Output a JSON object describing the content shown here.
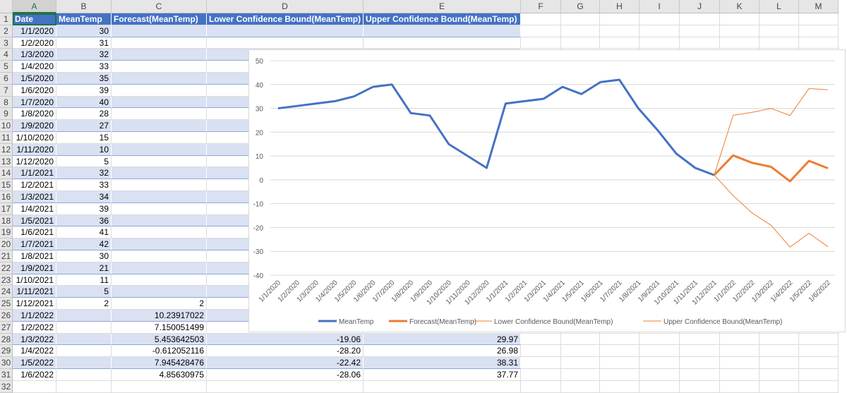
{
  "columns": [
    "A",
    "B",
    "C",
    "D",
    "E",
    "F",
    "G",
    "H",
    "I",
    "J",
    "K",
    "L",
    "M"
  ],
  "headers": [
    "Date",
    "MeanTemp",
    "Forecast(MeanTemp)",
    "Lower Confidence Bound(MeanTemp)",
    "Upper Confidence Bound(MeanTemp)"
  ],
  "rows": [
    [
      "1/1/2020",
      "30",
      "",
      "",
      ""
    ],
    [
      "1/2/2020",
      "31",
      "",
      "",
      ""
    ],
    [
      "1/3/2020",
      "32",
      "",
      "",
      ""
    ],
    [
      "1/4/2020",
      "33",
      "",
      "",
      ""
    ],
    [
      "1/5/2020",
      "35",
      "",
      "",
      ""
    ],
    [
      "1/6/2020",
      "39",
      "",
      "",
      ""
    ],
    [
      "1/7/2020",
      "40",
      "",
      "",
      ""
    ],
    [
      "1/8/2020",
      "28",
      "",
      "",
      ""
    ],
    [
      "1/9/2020",
      "27",
      "",
      "",
      ""
    ],
    [
      "1/10/2020",
      "15",
      "",
      "",
      ""
    ],
    [
      "1/11/2020",
      "10",
      "",
      "",
      ""
    ],
    [
      "1/12/2020",
      "5",
      "",
      "",
      ""
    ],
    [
      "1/1/2021",
      "32",
      "",
      "",
      ""
    ],
    [
      "1/2/2021",
      "33",
      "",
      "",
      ""
    ],
    [
      "1/3/2021",
      "34",
      "",
      "",
      ""
    ],
    [
      "1/4/2021",
      "39",
      "",
      "",
      ""
    ],
    [
      "1/5/2021",
      "36",
      "",
      "",
      ""
    ],
    [
      "1/6/2021",
      "41",
      "",
      "",
      ""
    ],
    [
      "1/7/2021",
      "42",
      "",
      "",
      ""
    ],
    [
      "1/8/2021",
      "30",
      "",
      "",
      ""
    ],
    [
      "1/9/2021",
      "21",
      "",
      "",
      ""
    ],
    [
      "1/10/2021",
      "11",
      "",
      "",
      ""
    ],
    [
      "1/11/2021",
      "5",
      "",
      "",
      ""
    ],
    [
      "1/12/2021",
      "2",
      "2",
      "",
      ""
    ],
    [
      "1/1/2022",
      "",
      "10.23917022",
      "",
      ""
    ],
    [
      "1/2/2022",
      "",
      "7.150051499",
      "",
      ""
    ],
    [
      "1/3/2022",
      "",
      "5.453642503",
      "-19.06",
      "29.97"
    ],
    [
      "1/4/2022",
      "",
      "-0.612052116",
      "-28.20",
      "26.98"
    ],
    [
      "1/5/2022",
      "",
      "7.945428476",
      "-22.42",
      "38.31"
    ],
    [
      "1/6/2022",
      "",
      "4.85630975",
      "-28.06",
      "37.77"
    ]
  ],
  "chart_data": {
    "type": "line",
    "categories": [
      "1/1/2020",
      "1/2/2020",
      "1/3/2020",
      "1/4/2020",
      "1/5/2020",
      "1/6/2020",
      "1/7/2020",
      "1/8/2020",
      "1/9/2020",
      "1/10/2020",
      "1/11/2020",
      "1/12/2020",
      "1/1/2021",
      "1/2/2021",
      "1/3/2021",
      "1/4/2021",
      "1/5/2021",
      "1/6/2021",
      "1/7/2021",
      "1/8/2021",
      "1/9/2021",
      "1/10/2021",
      "1/11/2021",
      "1/12/2021",
      "1/1/2022",
      "1/2/2022",
      "1/3/2022",
      "1/4/2022",
      "1/5/2022",
      "1/6/2022"
    ],
    "ylim": [
      -40,
      50
    ],
    "yticks": [
      50,
      40,
      30,
      20,
      10,
      0,
      -10,
      -20,
      -30,
      -40
    ],
    "grid": true,
    "legend": "bottom",
    "series": [
      {
        "name": "MeanTemp",
        "color": "#4472c4",
        "width": 3,
        "values": [
          30,
          31,
          32,
          33,
          35,
          39,
          40,
          28,
          27,
          15,
          10,
          5,
          32,
          33,
          34,
          39,
          36,
          41,
          42,
          30,
          21,
          11,
          5,
          2,
          null,
          null,
          null,
          null,
          null,
          null
        ]
      },
      {
        "name": "Forecast(MeanTemp)",
        "color": "#ed7d31",
        "width": 3,
        "values": [
          null,
          null,
          null,
          null,
          null,
          null,
          null,
          null,
          null,
          null,
          null,
          null,
          null,
          null,
          null,
          null,
          null,
          null,
          null,
          null,
          null,
          null,
          null,
          2,
          10.24,
          7.15,
          5.45,
          -0.61,
          7.95,
          4.86
        ]
      },
      {
        "name": "Lower Confidence Bound(MeanTemp)",
        "color": "#ed7d31",
        "width": 1,
        "values": [
          null,
          null,
          null,
          null,
          null,
          null,
          null,
          null,
          null,
          null,
          null,
          null,
          null,
          null,
          null,
          null,
          null,
          null,
          null,
          null,
          null,
          null,
          null,
          2,
          -6.6,
          -13.9,
          -19.06,
          -28.2,
          -22.42,
          -28.06
        ]
      },
      {
        "name": "Upper Confidence Bound(MeanTemp)",
        "color": "#ed7d31",
        "width": 1,
        "values": [
          null,
          null,
          null,
          null,
          null,
          null,
          null,
          null,
          null,
          null,
          null,
          null,
          null,
          null,
          null,
          null,
          null,
          null,
          null,
          null,
          null,
          null,
          null,
          2,
          27.1,
          28.3,
          29.97,
          26.98,
          38.31,
          37.77
        ]
      }
    ]
  }
}
